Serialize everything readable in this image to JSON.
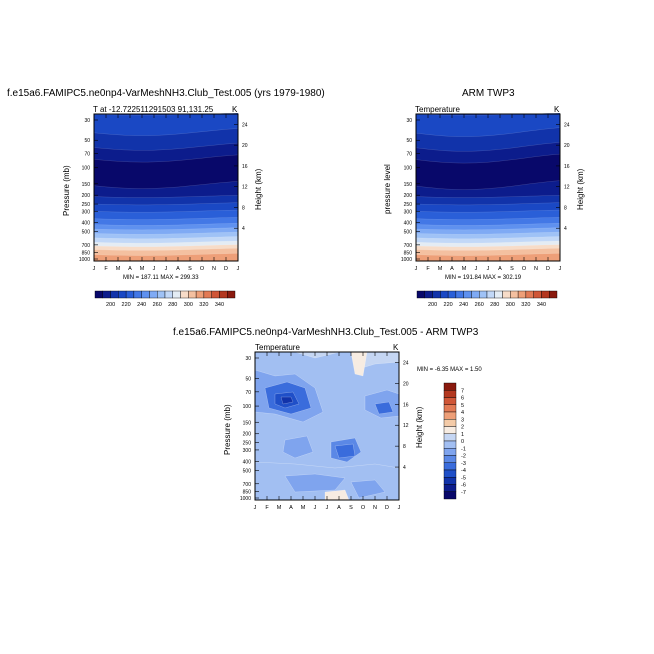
{
  "chart_data": [
    {
      "type": "contour",
      "title": "f.e15a6.FAMIPC5.ne0np4-VarMeshNH3.Club_Test.005 (yrs 1979-1980)",
      "subtitle_left": "T at -12.722511291503 91,131.25",
      "subtitle_right": "K",
      "ylabel": "Pressure (mb)",
      "right_label": "Height (km)",
      "months": [
        "J",
        "F",
        "M",
        "A",
        "M",
        "J",
        "J",
        "A",
        "S",
        "O",
        "N",
        "D",
        "J"
      ],
      "pressure_ticks": [
        "30",
        "50",
        "70",
        "100",
        "150",
        "200",
        "250",
        "300",
        "400",
        "500",
        "700",
        "850",
        "1000"
      ],
      "height_ticks": [
        "24",
        "20",
        "16",
        "12",
        "8",
        "4"
      ],
      "stats": "MIN = 187.11  MAX = 299.33",
      "colorbar_labels": [
        "200",
        "220",
        "240",
        "260",
        "280",
        "300",
        "320",
        "340"
      ]
    },
    {
      "type": "contour",
      "title": "ARM TWP3",
      "subtitle_left": "Temperature",
      "subtitle_right": "K",
      "ylabel": "pressure level",
      "right_label": "Height (km)",
      "months": [
        "J",
        "F",
        "M",
        "A",
        "M",
        "J",
        "J",
        "A",
        "S",
        "O",
        "N",
        "D",
        "J"
      ],
      "pressure_ticks": [
        "30",
        "50",
        "70",
        "100",
        "150",
        "200",
        "250",
        "300",
        "400",
        "500",
        "700",
        "850",
        "1000"
      ],
      "height_ticks": [
        "24",
        "20",
        "16",
        "12",
        "8",
        "4"
      ],
      "stats": "MIN = 191.84  MAX = 302.19",
      "colorbar_labels": [
        "200",
        "220",
        "240",
        "260",
        "280",
        "300",
        "320",
        "340"
      ]
    },
    {
      "type": "contour",
      "title": "f.e15a6.FAMIPC5.ne0np4-VarMeshNH3.Club_Test.005 - ARM TWP3",
      "subtitle_left": "Temperature",
      "subtitle_right": "K",
      "ylabel": "Pressure (mb)",
      "right_label": "Height (km)",
      "months": [
        "J",
        "F",
        "M",
        "A",
        "M",
        "J",
        "J",
        "A",
        "S",
        "O",
        "N",
        "D",
        "J"
      ],
      "pressure_ticks": [
        "30",
        "50",
        "70",
        "100",
        "150",
        "200",
        "250",
        "300",
        "400",
        "500",
        "700",
        "850",
        "1000"
      ],
      "height_ticks": [
        "24",
        "20",
        "16",
        "12",
        "8",
        "4"
      ],
      "stats": "MIN =  -6.35 MAX =  1.50",
      "colorbar_labels": [
        "7",
        "6",
        "5",
        "4",
        "3",
        "2",
        "1",
        "0",
        "-1",
        "-2",
        "-3",
        "-4",
        "-5",
        "-6",
        "-7"
      ]
    }
  ],
  "colors": {
    "temp_scale": [
      "#08086a",
      "#0c1c8c",
      "#1133aa",
      "#1a48c4",
      "#2a5fd8",
      "#4378e6",
      "#5f91ef",
      "#7faaf4",
      "#9fc2f6",
      "#c2d8f7",
      "#e4ecf4",
      "#f7dcc8",
      "#f4c0a0",
      "#ee9f78",
      "#e27a55",
      "#cf5637",
      "#b3371f",
      "#8a1a0e"
    ],
    "diff_scale": [
      "#08086a",
      "#0c1c8c",
      "#1133aa",
      "#1f4fc8",
      "#3a6cdc",
      "#5b88e6",
      "#7fa4ee",
      "#a2bff2",
      "#c5d6f3",
      "#f7ece2",
      "#f4cba8",
      "#ee9f78",
      "#e27a55",
      "#cf5637",
      "#b3371f",
      "#8a1a0e"
    ]
  }
}
